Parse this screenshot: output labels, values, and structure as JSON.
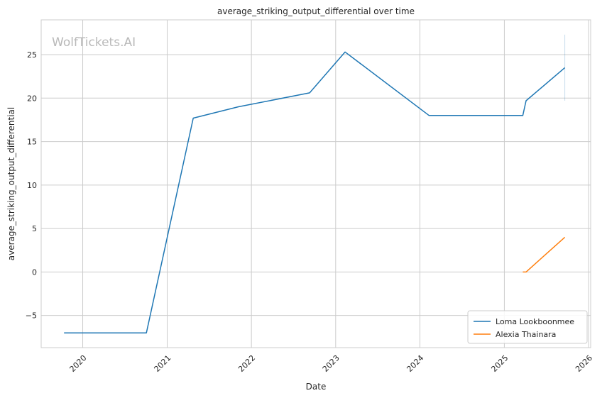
{
  "watermark": "WolfTickets.AI",
  "chart_data": {
    "type": "line",
    "title": "average_striking_output_differential over time",
    "xlabel": "Date",
    "ylabel": "average_striking_output_differential",
    "x_type": "date",
    "xlim": [
      "2019-07-05",
      "2026-01-10"
    ],
    "ylim": [
      -8.7,
      29.0
    ],
    "x_ticks": [
      "2020-01-01",
      "2021-01-01",
      "2022-01-01",
      "2023-01-01",
      "2024-01-01",
      "2025-01-01",
      "2026-01-01"
    ],
    "x_tick_labels": [
      "2020",
      "2021",
      "2022",
      "2023",
      "2024",
      "2025",
      "2026"
    ],
    "y_ticks": [
      -5,
      0,
      5,
      10,
      15,
      20,
      25
    ],
    "y_tick_labels": [
      "−5",
      "0",
      "5",
      "10",
      "15",
      "20",
      "25"
    ],
    "grid": true,
    "legend_position": "lower-right",
    "series": [
      {
        "name": "Loma Lookboonmee",
        "color": "#1f77b4",
        "x": [
          "2019-10-12",
          "2020-10-03",
          "2021-04-24",
          "2021-11-06",
          "2022-09-10",
          "2023-02-11",
          "2024-02-10",
          "2025-03-22",
          "2025-04-05",
          "2025-09-20"
        ],
        "y": [
          -7.0,
          -7.0,
          17.7,
          19.0,
          20.6,
          25.3,
          18.0,
          18.0,
          19.7,
          23.5
        ],
        "error_bar": {
          "x": "2025-09-20",
          "low": 19.7,
          "high": 27.3
        }
      },
      {
        "name": "Alexia Thainara",
        "color": "#ff7f0e",
        "x": [
          "2025-03-22",
          "2025-04-05",
          "2025-09-20"
        ],
        "y": [
          0.0,
          0.0,
          4.0
        ]
      }
    ]
  }
}
